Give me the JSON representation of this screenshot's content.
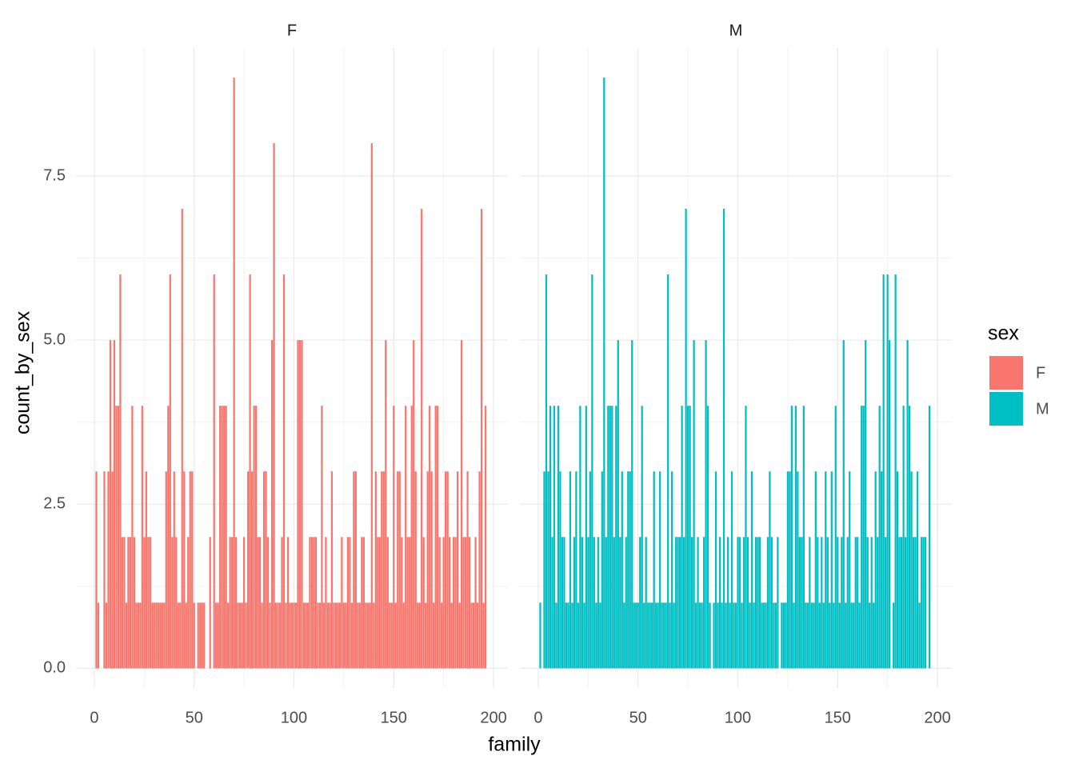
{
  "chart_data": {
    "type": "bar",
    "xlabel": "family",
    "ylabel": "count_by_sex",
    "legend_title": "sex",
    "grid": true,
    "legend_position": "right",
    "xlim": [
      -9.2,
      207.2
    ],
    "ylim": [
      -0.3,
      9.45
    ],
    "xticks": [
      0,
      50,
      100,
      150,
      200
    ],
    "yticks": [
      {
        "value": 0,
        "label": "0.0"
      },
      2.5,
      {
        "value": 5,
        "label": "5.0"
      },
      7.5
    ],
    "x": [
      1,
      2,
      3,
      4,
      5,
      6,
      7,
      8,
      9,
      10,
      11,
      12,
      13,
      14,
      15,
      16,
      17,
      18,
      19,
      20,
      21,
      22,
      23,
      24,
      25,
      26,
      27,
      28,
      29,
      30,
      31,
      32,
      33,
      34,
      35,
      36,
      37,
      38,
      39,
      40,
      41,
      42,
      43,
      44,
      45,
      46,
      47,
      48,
      49,
      50,
      51,
      52,
      53,
      54,
      55,
      56,
      57,
      58,
      59,
      60,
      61,
      62,
      63,
      64,
      65,
      66,
      67,
      68,
      69,
      70,
      71,
      72,
      73,
      74,
      75,
      76,
      77,
      78,
      79,
      80,
      81,
      82,
      83,
      84,
      85,
      86,
      87,
      88,
      89,
      90,
      91,
      92,
      93,
      94,
      95,
      96,
      97,
      98,
      99,
      100,
      101,
      102,
      103,
      104,
      105,
      106,
      107,
      108,
      109,
      110,
      111,
      112,
      113,
      114,
      115,
      116,
      117,
      118,
      119,
      120,
      121,
      122,
      123,
      124,
      125,
      126,
      127,
      128,
      129,
      130,
      131,
      132,
      133,
      134,
      135,
      136,
      137,
      138,
      139,
      140,
      141,
      142,
      143,
      144,
      145,
      146,
      147,
      148,
      149,
      150,
      151,
      152,
      153,
      154,
      155,
      156,
      157,
      158,
      159,
      160,
      161,
      162,
      163,
      164,
      165,
      166,
      167,
      168,
      169,
      170,
      171,
      172,
      173,
      174,
      175,
      176,
      177,
      178,
      179,
      180,
      181,
      182,
      183,
      184,
      185,
      186,
      187,
      188,
      189,
      190,
      191,
      192,
      193,
      194,
      195,
      196
    ],
    "series": [
      {
        "name": "F",
        "color": "#f8766d",
        "values": [
          3,
          1,
          null,
          null,
          3,
          1,
          3,
          5,
          3,
          5,
          4,
          4,
          6,
          2,
          2,
          1,
          2,
          2,
          4,
          2,
          1,
          1,
          1,
          4,
          2,
          3,
          2,
          2,
          1,
          1,
          1,
          1,
          1,
          1,
          1,
          3,
          4,
          6,
          2,
          3,
          2,
          1,
          1,
          7,
          3,
          1,
          2,
          3,
          3,
          1,
          null,
          1,
          1,
          1,
          1,
          null,
          null,
          2,
          null,
          6,
          1,
          1,
          4,
          4,
          4,
          4,
          1,
          2,
          2,
          9,
          2,
          1,
          1,
          1,
          2,
          1,
          3,
          6,
          3,
          4,
          4,
          2,
          2,
          1,
          3,
          3,
          2,
          1,
          5,
          8,
          1,
          1,
          1,
          2,
          6,
          1,
          2,
          1,
          1,
          1,
          1,
          5,
          5,
          5,
          1,
          1,
          1,
          2,
          2,
          2,
          2,
          1,
          1,
          4,
          1,
          2,
          1,
          1,
          3,
          1,
          1,
          1,
          1,
          2,
          1,
          1,
          2,
          2,
          1,
          3,
          3,
          1,
          1,
          2,
          2,
          1,
          1,
          1,
          8,
          1,
          3,
          2,
          2,
          3,
          3,
          5,
          2,
          1,
          1,
          4,
          1,
          3,
          3,
          2,
          1,
          4,
          2,
          2,
          4,
          5,
          3,
          1,
          1,
          7,
          2,
          1,
          3,
          4,
          3,
          1,
          4,
          4,
          2,
          1,
          2,
          3,
          3,
          2,
          1,
          2,
          2,
          3,
          1,
          5,
          2,
          2,
          3,
          2,
          1,
          1,
          2,
          1,
          3,
          7,
          1,
          4
        ]
      },
      {
        "name": "M",
        "color": "#00bfc4",
        "values": [
          1,
          null,
          3,
          6,
          3,
          4,
          2,
          4,
          1,
          4,
          3,
          2,
          2,
          1,
          1,
          3,
          1,
          2,
          3,
          1,
          4,
          2,
          1,
          4,
          2,
          3,
          6,
          2,
          1,
          2,
          1,
          3,
          9,
          2,
          4,
          4,
          4,
          2,
          4,
          5,
          2,
          3,
          1,
          2,
          3,
          3,
          5,
          1,
          1,
          1,
          2,
          4,
          1,
          2,
          1,
          1,
          1,
          3,
          1,
          1,
          3,
          1,
          1,
          1,
          6,
          1,
          3,
          1,
          2,
          2,
          2,
          4,
          2,
          7,
          4,
          4,
          2,
          5,
          1,
          2,
          1,
          1,
          2,
          5,
          4,
          1,
          null,
          1,
          3,
          1,
          2,
          1,
          7,
          1,
          2,
          1,
          3,
          1,
          1,
          2,
          2,
          1,
          2,
          4,
          2,
          1,
          3,
          1,
          2,
          2,
          2,
          1,
          1,
          1,
          2,
          3,
          2,
          1,
          1,
          2,
          null,
          1,
          1,
          1,
          3,
          3,
          4,
          1,
          4,
          3,
          2,
          2,
          4,
          1,
          1,
          2,
          1,
          1,
          3,
          2,
          1,
          2,
          1,
          3,
          2,
          1,
          3,
          1,
          4,
          2,
          1,
          2,
          5,
          1,
          2,
          3,
          1,
          1,
          2,
          2,
          1,
          4,
          4,
          5,
          2,
          1,
          2,
          1,
          3,
          2,
          4,
          3,
          6,
          2,
          6,
          5,
          null,
          1,
          6,
          3,
          2,
          2,
          4,
          2,
          5,
          4,
          3,
          2,
          2,
          3,
          1,
          2,
          2,
          2,
          null,
          4
        ]
      }
    ]
  }
}
